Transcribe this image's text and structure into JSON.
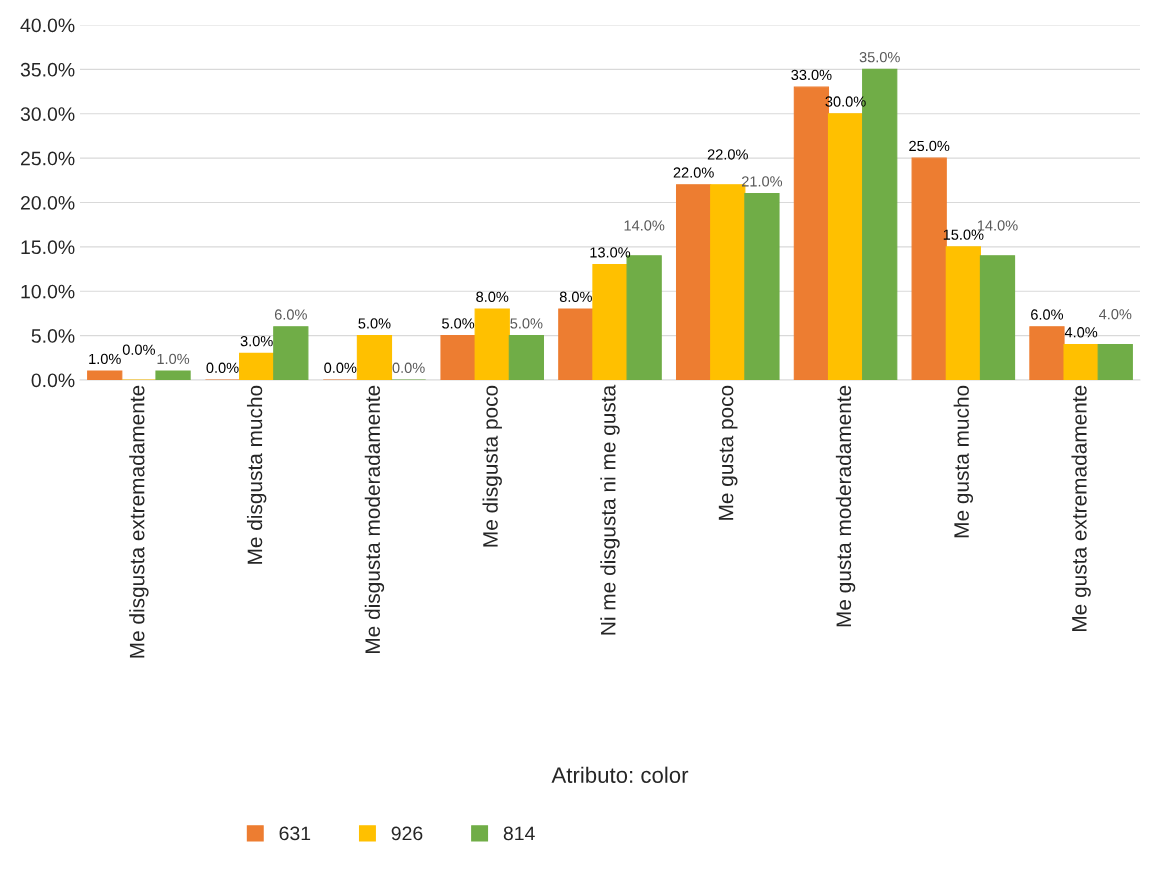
{
  "chart_data": {
    "type": "bar",
    "xlabel": "Atributo: color",
    "categories": [
      "Me disgusta extremadamente",
      "Me disgusta mucho",
      "Me disgusta moderadamente",
      "Me disgusta poco",
      "Ni me disgusta ni me gusta",
      "Me gusta poco",
      "Me gusta moderadamente",
      "Me gusta mucho",
      "Me gusta extremadamente"
    ],
    "series": [
      {
        "name": "631",
        "color": "#ed7d31",
        "values": [
          1,
          0,
          0,
          5,
          8,
          22,
          33,
          25,
          6
        ],
        "value_labels": [
          "1.0%",
          "0.0%",
          "0.0%",
          "5.0%",
          "8.0%",
          "22.0%",
          "33.0%",
          "25.0%",
          "6.0%"
        ]
      },
      {
        "name": "926",
        "color": "#ffc000",
        "values": [
          0,
          3,
          5,
          8,
          13,
          22,
          30,
          15,
          4
        ],
        "value_labels": [
          "0.0%",
          "3.0%",
          "5.0%",
          "8.0%",
          "13.0%",
          "22.0%",
          "30.0%",
          "15.0%",
          "4.0%"
        ]
      },
      {
        "name": "814",
        "color": "#70ad47",
        "values": [
          1,
          6,
          0,
          5,
          14,
          21,
          35,
          14,
          4
        ],
        "value_labels": [
          "1.0%",
          "6.0%",
          "0.0%",
          "5.0%",
          "14.0%",
          "21.0%",
          "35.0%",
          "14.0%",
          "4.0%"
        ]
      }
    ],
    "ylim": [
      0,
      40
    ],
    "yticks": [
      {
        "value": 0,
        "label": "0.0%"
      },
      {
        "value": 5,
        "label": "5.0%"
      },
      {
        "value": 10,
        "label": "10.0%"
      },
      {
        "value": 15,
        "label": "15.0%"
      },
      {
        "value": 20,
        "label": "20.0%"
      },
      {
        "value": 25,
        "label": "25.0%"
      },
      {
        "value": 30,
        "label": "30.0%"
      },
      {
        "value": 35,
        "label": "35.0%"
      },
      {
        "value": 40,
        "label": "40.0%"
      }
    ],
    "grid": "y",
    "legend": "bottom"
  }
}
